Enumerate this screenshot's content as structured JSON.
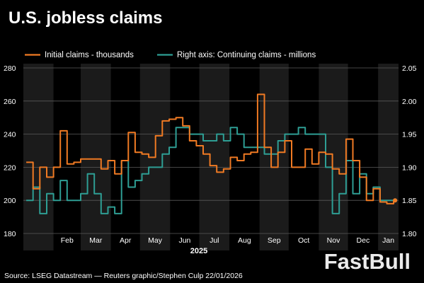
{
  "chart_data": {
    "type": "line",
    "title": "U.S. jobless claims",
    "xlabel": "2025",
    "source": "Source: LSEG Datastream — Reuters graphic/Stephen Culp 22/01/2026",
    "watermark": "FastBull",
    "x_ticks": [
      "Feb",
      "Mar",
      "Apr",
      "May",
      "Jun",
      "Jul",
      "Aug",
      "Sep",
      "Oct",
      "Nov",
      "Dec",
      "Jan"
    ],
    "x_range": [
      "2025-01-01",
      "2026-01-22"
    ],
    "left_axis": {
      "ylim": [
        180,
        280
      ],
      "ticks": [
        180,
        200,
        220,
        240,
        260,
        280
      ],
      "tick_labels": [
        "180",
        "200",
        "220",
        "240",
        "260",
        "280"
      ]
    },
    "right_axis": {
      "ylim": [
        1.8,
        2.05
      ],
      "ticks": [
        1.8,
        1.85,
        1.9,
        1.95,
        2.0,
        2.05
      ],
      "tick_labels": [
        "1.80",
        "1.85",
        "1.90",
        "1.95",
        "2.00",
        "2.05"
      ]
    },
    "legend": {
      "placement": "top-left"
    },
    "grid": true,
    "shaded_months": [
      "Jan",
      "Mar",
      "May",
      "Jul",
      "Sep",
      "Nov",
      "Jan"
    ],
    "series": [
      {
        "name": "Initial claims - thousands",
        "axis": "left",
        "color": "#f07a23",
        "step": true,
        "last_marker": true,
        "points": [
          [
            "2025-01-04",
            223
          ],
          [
            "2025-01-11",
            207
          ],
          [
            "2025-01-18",
            220
          ],
          [
            "2025-01-25",
            214
          ],
          [
            "2025-02-01",
            220
          ],
          [
            "2025-02-08",
            242
          ],
          [
            "2025-02-15",
            222
          ],
          [
            "2025-02-22",
            223
          ],
          [
            "2025-03-01",
            225
          ],
          [
            "2025-03-08",
            225
          ],
          [
            "2025-03-15",
            225
          ],
          [
            "2025-03-22",
            219
          ],
          [
            "2025-03-29",
            224
          ],
          [
            "2025-04-05",
            216
          ],
          [
            "2025-04-12",
            224
          ],
          [
            "2025-04-19",
            241
          ],
          [
            "2025-04-26",
            229
          ],
          [
            "2025-05-03",
            228
          ],
          [
            "2025-05-10",
            226
          ],
          [
            "2025-05-17",
            239
          ],
          [
            "2025-05-24",
            248
          ],
          [
            "2025-05-31",
            249
          ],
          [
            "2025-06-07",
            250
          ],
          [
            "2025-06-14",
            245
          ],
          [
            "2025-06-21",
            236
          ],
          [
            "2025-06-28",
            233
          ],
          [
            "2025-07-05",
            228
          ],
          [
            "2025-07-12",
            221
          ],
          [
            "2025-07-19",
            217
          ],
          [
            "2025-07-26",
            219
          ],
          [
            "2025-08-02",
            226
          ],
          [
            "2025-08-09",
            224
          ],
          [
            "2025-08-16",
            228
          ],
          [
            "2025-08-23",
            229
          ],
          [
            "2025-08-30",
            264
          ],
          [
            "2025-09-06",
            232
          ],
          [
            "2025-09-13",
            220
          ],
          [
            "2025-09-20",
            229
          ],
          [
            "2025-09-27",
            236
          ],
          [
            "2025-10-04",
            220
          ],
          [
            "2025-10-11",
            220
          ],
          [
            "2025-10-18",
            231
          ],
          [
            "2025-10-25",
            222
          ],
          [
            "2025-11-01",
            229
          ],
          [
            "2025-11-08",
            228
          ],
          [
            "2025-11-15",
            219
          ],
          [
            "2025-11-22",
            216
          ],
          [
            "2025-11-29",
            237
          ],
          [
            "2025-12-06",
            224
          ],
          [
            "2025-12-13",
            214
          ],
          [
            "2025-12-20",
            200
          ],
          [
            "2025-12-27",
            207
          ],
          [
            "2026-01-03",
            199
          ],
          [
            "2026-01-10",
            198
          ],
          [
            "2026-01-17",
            200
          ]
        ]
      },
      {
        "name": "Right axis: Continuing claims - millions",
        "axis": "right",
        "color": "#2e9e94",
        "step": true,
        "last_marker": true,
        "points": [
          [
            "2025-01-04",
            1.85
          ],
          [
            "2025-01-11",
            1.87
          ],
          [
            "2025-01-18",
            1.83
          ],
          [
            "2025-01-25",
            1.86
          ],
          [
            "2025-02-01",
            1.85
          ],
          [
            "2025-02-08",
            1.88
          ],
          [
            "2025-02-15",
            1.85
          ],
          [
            "2025-02-22",
            1.85
          ],
          [
            "2025-03-01",
            1.86
          ],
          [
            "2025-03-08",
            1.89
          ],
          [
            "2025-03-15",
            1.86
          ],
          [
            "2025-03-22",
            1.83
          ],
          [
            "2025-03-29",
            1.84
          ],
          [
            "2025-04-05",
            1.83
          ],
          [
            "2025-04-12",
            1.91
          ],
          [
            "2025-04-19",
            1.87
          ],
          [
            "2025-04-26",
            1.88
          ],
          [
            "2025-05-03",
            1.89
          ],
          [
            "2025-05-10",
            1.9
          ],
          [
            "2025-05-17",
            1.9
          ],
          [
            "2025-05-24",
            1.92
          ],
          [
            "2025-05-31",
            1.93
          ],
          [
            "2025-06-07",
            1.96
          ],
          [
            "2025-06-14",
            1.96
          ],
          [
            "2025-06-21",
            1.95
          ],
          [
            "2025-06-28",
            1.95
          ],
          [
            "2025-07-05",
            1.94
          ],
          [
            "2025-07-12",
            1.94
          ],
          [
            "2025-07-19",
            1.95
          ],
          [
            "2025-07-26",
            1.94
          ],
          [
            "2025-08-02",
            1.96
          ],
          [
            "2025-08-09",
            1.95
          ],
          [
            "2025-08-16",
            1.93
          ],
          [
            "2025-08-23",
            1.93
          ],
          [
            "2025-08-30",
            1.93
          ],
          [
            "2025-09-06",
            1.92
          ],
          [
            "2025-09-13",
            1.92
          ],
          [
            "2025-09-20",
            1.94
          ],
          [
            "2025-09-27",
            1.95
          ],
          [
            "2025-10-04",
            1.95
          ],
          [
            "2025-10-11",
            1.96
          ],
          [
            "2025-10-18",
            1.95
          ],
          [
            "2025-10-25",
            1.95
          ],
          [
            "2025-11-01",
            1.95
          ],
          [
            "2025-11-08",
            1.9
          ],
          [
            "2025-11-15",
            1.83
          ],
          [
            "2025-11-22",
            1.86
          ],
          [
            "2025-11-29",
            1.91
          ],
          [
            "2025-12-06",
            1.86
          ],
          [
            "2025-12-13",
            1.89
          ],
          [
            "2025-12-20",
            1.86
          ],
          [
            "2025-12-27",
            1.87
          ],
          [
            "2026-01-03",
            1.85
          ],
          [
            "2026-01-10",
            1.85
          ],
          [
            "2026-01-17",
            1.85
          ]
        ]
      }
    ]
  }
}
